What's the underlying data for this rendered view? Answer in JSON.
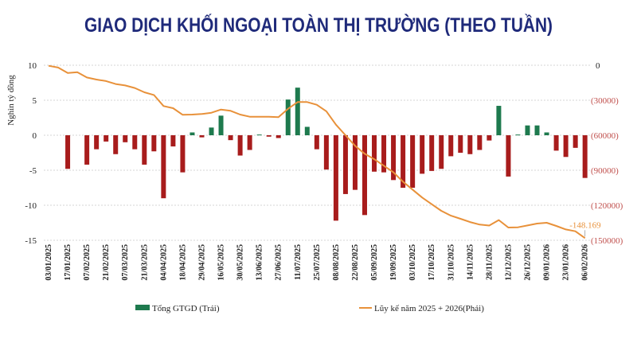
{
  "chart_data": {
    "type": "bar+line",
    "title": "GIAO DỊCH KHỐI NGOẠI TOÀN THỊ TRƯỜNG (THEO TUẦN)",
    "ylabel_left": "Nghìn tỷ đồng",
    "left_axis": {
      "range": [
        -15,
        10
      ],
      "ticks": [
        "10",
        "5",
        "0",
        "-5",
        "-10",
        "-15"
      ],
      "tick_values": [
        10,
        5,
        0,
        -5,
        -10,
        -15
      ]
    },
    "right_axis": {
      "range": [
        -150000,
        0
      ],
      "ticks": [
        "0",
        "(30000)",
        "(60000)",
        "(90000)",
        "(120000)",
        "(150000)"
      ],
      "tick_values": [
        0,
        -30000,
        -60000,
        -90000,
        -120000,
        -150000
      ],
      "negative_color": "#c0504d"
    },
    "grid": true,
    "legend_placement": "bottom",
    "x_tick_labels": [
      "03/01/2025",
      "17/01/2025",
      "07/02/2025",
      "21/02/2025",
      "07/03/2025",
      "21/03/2025",
      "04/04/2025",
      "18/04/2025",
      "29/04/2025",
      "16/05/2025",
      "30/05/2025",
      "13/06/2025",
      "27/06/2025",
      "11/07/2025",
      "25/07/2025",
      "08/08/2025",
      "22/08/2025",
      "05/09/2025",
      "19/09/2025",
      "03/10/2025",
      "17/10/2025",
      "31/10/2025",
      "14/11/2025",
      "28/11/2025",
      "12/12/2025",
      "26/12/2025",
      "09/01/2026",
      "23/01/2026",
      "06/02/2026"
    ],
    "series": [
      {
        "name": "Tổng GTGD (Trái)",
        "type": "bar",
        "axis": "left",
        "positive_color": "#1e7a4e",
        "negative_color": "#a81c1c",
        "values": [
          0,
          0,
          -4.8,
          0,
          -4.2,
          -2.0,
          -0.9,
          -2.7,
          -1.0,
          -2.0,
          -4.2,
          -2.3,
          -9.0,
          -1.6,
          -5.3,
          0.4,
          -0.3,
          1.1,
          2.8,
          -0.7,
          -2.9,
          -2.1,
          0.1,
          -0.2,
          -0.4,
          5.1,
          6.8,
          1.2,
          -2.0,
          -4.9,
          -12.2,
          -8.4,
          -7.8,
          -11.4,
          -5.2,
          -5.3,
          -6.4,
          -7.5,
          -7.5,
          -5.5,
          -5.1,
          -4.8,
          -3.0,
          -2.5,
          -2.7,
          -2.1,
          -0.75,
          4.2,
          -5.9,
          0.1,
          1.4,
          1.4,
          0.4,
          -2.2,
          -3.1,
          -1.8,
          -6.1
        ]
      },
      {
        "name": "Lũy kế năm 2025 + 2026(Phải)",
        "type": "line",
        "axis": "right",
        "color": "#e8913a",
        "values": [
          -500,
          -2000,
          -6600,
          -5900,
          -10500,
          -12300,
          -13600,
          -16100,
          -17300,
          -19500,
          -23200,
          -25500,
          -35000,
          -36800,
          -42500,
          -42300,
          -41800,
          -40700,
          -38000,
          -39100,
          -42300,
          -44100,
          -44100,
          -44100,
          -44500,
          -37300,
          -31600,
          -31600,
          -33900,
          -39500,
          -50900,
          -60000,
          -69100,
          -75900,
          -80500,
          -86100,
          -91800,
          -99800,
          -106600,
          -113400,
          -119100,
          -124800,
          -128900,
          -131600,
          -134400,
          -136600,
          -137400,
          -132700,
          -139100,
          -138900,
          -137300,
          -135700,
          -135000,
          -137700,
          -140700,
          -142300,
          -148169
        ]
      }
    ],
    "annotations": [
      {
        "text": "-148.169",
        "series": "Lũy kế năm 2025 + 2026(Phải)",
        "point": "last"
      }
    ]
  }
}
